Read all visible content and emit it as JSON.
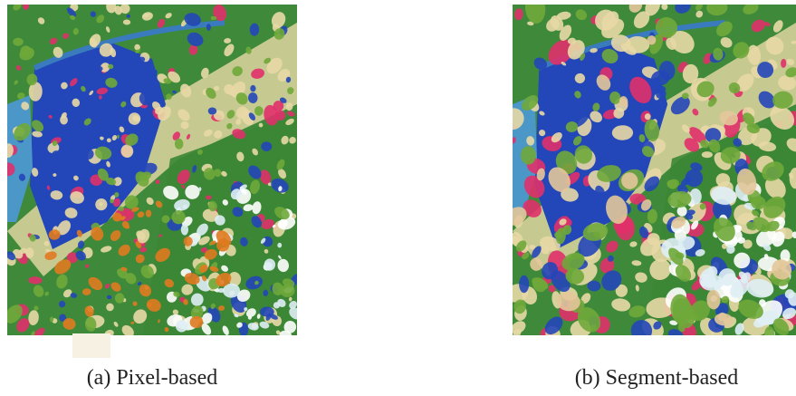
{
  "figure": {
    "panels": [
      {
        "caption": "(a) Pixel-based"
      },
      {
        "caption": "(b) Segment-based"
      }
    ]
  }
}
